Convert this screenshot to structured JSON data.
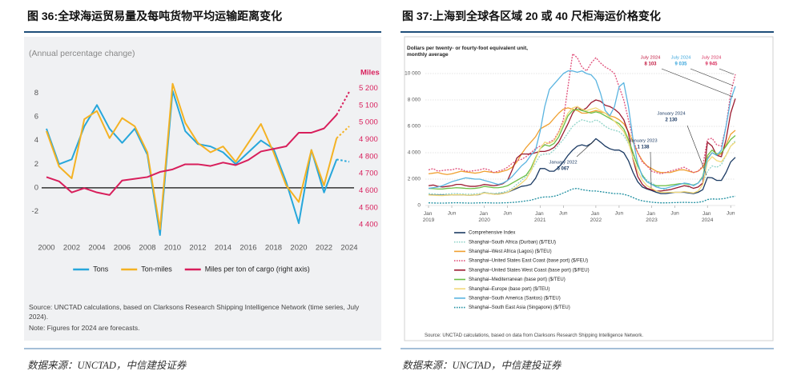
{
  "chart_data": [
    {
      "type": "line",
      "title": "图 36:全球海运贸易量及每吨货物平均运输距离变化",
      "subtitle": "(Annual percentage change)",
      "x": [
        2000,
        2001,
        2002,
        2003,
        2004,
        2005,
        2006,
        2007,
        2008,
        2009,
        2010,
        2011,
        2012,
        2013,
        2014,
        2015,
        2016,
        2017,
        2018,
        2019,
        2020,
        2021,
        2022,
        2023,
        2024
      ],
      "xlim": [
        2000,
        2024
      ],
      "xticks": [
        2000,
        2002,
        2004,
        2006,
        2008,
        2010,
        2012,
        2014,
        2016,
        2018,
        2020,
        2022,
        2024
      ],
      "ylim": [
        -4,
        10
      ],
      "yticks": [
        -2,
        0,
        2,
        4,
        6,
        8
      ],
      "y2label": "Miles",
      "y2lim": [
        4340,
        5310
      ],
      "y2ticks": [
        {
          "value": 4400,
          "label": "4 400"
        },
        {
          "value": 4500,
          "label": "4 500"
        },
        {
          "value": 4600,
          "label": "4 600"
        },
        {
          "value": 4700,
          "label": "4 700"
        },
        {
          "value": 4800,
          "label": "4 800"
        },
        {
          "value": 4900,
          "label": "4 900"
        },
        {
          "value": 5000,
          "label": "5 000"
        },
        {
          "value": 5100,
          "label": "5 100"
        },
        {
          "value": 5200,
          "label": "5 200"
        }
      ],
      "zero_line": true,
      "forecast_x": 2024,
      "legend": "bottom",
      "series": [
        {
          "name": "Tons",
          "color": "#27a7db",
          "values": [
            5.0,
            2.0,
            2.4,
            5.2,
            7.0,
            5.0,
            3.8,
            5.0,
            2.8,
            -4.0,
            8.2,
            4.8,
            3.7,
            3.5,
            3.0,
            2.0,
            3.0,
            4.0,
            3.3,
            0.5,
            -3.0,
            3.2,
            -0.4,
            2.4,
            2.2
          ]
        },
        {
          "name": "Ton-miles",
          "color": "#f4b223",
          "values": [
            4.8,
            1.8,
            0.8,
            5.8,
            6.5,
            4.2,
            5.9,
            5.2,
            3.0,
            -3.5,
            8.8,
            5.5,
            3.8,
            3.0,
            3.5,
            2.2,
            3.8,
            5.4,
            3.0,
            0.2,
            -1.2,
            3.2,
            0.2,
            4.2,
            5.2
          ]
        },
        {
          "name": "Miles per ton of cargo (right axis)",
          "color": "#d81e5b",
          "axis": "y2",
          "values": [
            4680,
            4655,
            4590,
            4615,
            4590,
            4575,
            4660,
            4670,
            4680,
            4710,
            4725,
            4755,
            4755,
            4745,
            4765,
            4750,
            4780,
            4830,
            4845,
            4860,
            4940,
            4940,
            4965,
            5045,
            5180
          ]
        }
      ],
      "source": "Source: UNCTAD calculations, based on Clarksons Research Shipping Intelligence Network (time series, July 2024).",
      "note": "Note: Figures for 2024 are forecasts.",
      "footer": "数据来源：UNCTAD，中信建投证券"
    },
    {
      "type": "line",
      "title": "图 37:上海到全球各区域 20 或 40 尺柜海运价格变化",
      "y_label": "Dollars per twenty- or fourty-foot equivalent unit, monthly average",
      "categories": [
        "Jan 2019",
        null,
        null,
        null,
        null,
        "Jun",
        null,
        null,
        null,
        null,
        null,
        null,
        "Jan 2020",
        null,
        null,
        null,
        null,
        "Jun",
        null,
        null,
        null,
        null,
        null,
        null,
        "Jan 2021",
        null,
        null,
        null,
        null,
        "Jun",
        null,
        null,
        null,
        null,
        null,
        null,
        "Jan 2022",
        null,
        null,
        null,
        null,
        "Jun",
        null,
        null,
        null,
        null,
        null,
        null,
        "Jan 2023",
        null,
        null,
        null,
        null,
        "Jun",
        null,
        null,
        null,
        null,
        null,
        null,
        "Jan 2024",
        null,
        null,
        null,
        null,
        "Jun",
        null
      ],
      "ylim": [
        0,
        12000
      ],
      "yticks": [
        0,
        {
          "value": 2000,
          "label": "2 000"
        },
        {
          "value": 4000,
          "label": "4 000"
        },
        {
          "value": 6000,
          "label": "6 000"
        },
        {
          "value": 8000,
          "label": "8 000"
        },
        {
          "value": 10000,
          "label": "10 000"
        }
      ],
      "grid": true,
      "legend": "bottom-left",
      "series": [
        {
          "name": "Comprehensive Index",
          "color": "#1b3a63",
          "values": [
            820,
            800,
            790,
            780,
            790,
            800,
            820,
            810,
            790,
            780,
            800,
            830,
            980,
            900,
            880,
            860,
            920,
            1000,
            1150,
            1300,
            1450,
            1500,
            1600,
            2050,
            2800,
            2800,
            2600,
            2600,
            2900,
            3300,
            3800,
            4200,
            4500,
            4600,
            4500,
            4700,
            5067,
            4800,
            4500,
            4300,
            4200,
            4200,
            4000,
            3400,
            2500,
            1800,
            1400,
            1250,
            1138,
            1000,
            900,
            900,
            950,
            1000,
            1000,
            1000,
            950,
            900,
            1000,
            1200,
            2130,
            2100,
            1900,
            1900,
            2500,
            3300,
            3650
          ]
        },
        {
          "name": "Shanghai–South Africa (Durban) ($/TEU)",
          "color": "#8fd3c8",
          "dash": true,
          "values": [
            900,
            880,
            850,
            850,
            870,
            900,
            900,
            880,
            860,
            850,
            880,
            900,
            1000,
            950,
            900,
            950,
            1000,
            1100,
            1300,
            1600,
            1900,
            2200,
            2600,
            3200,
            3800,
            3900,
            3900,
            4200,
            4600,
            5000,
            5500,
            6000,
            6300,
            6500,
            6400,
            6300,
            6500,
            6300,
            6000,
            5800,
            5700,
            5600,
            5300,
            4700,
            3800,
            3000,
            2300,
            1900,
            1700,
            1500,
            1300,
            1200,
            1200,
            1300,
            1400,
            1500,
            1400,
            1300,
            1400,
            1700,
            2600,
            3000,
            2900,
            3100,
            3800,
            4500,
            4900
          ]
        },
        {
          "name": "Shanghai–West Africa (Lagos) ($/TEU)",
          "color": "#f0a030",
          "values": [
            2400,
            2450,
            2500,
            2400,
            2350,
            2400,
            2500,
            2600,
            2550,
            2500,
            2450,
            2500,
            2600,
            2550,
            2500,
            2500,
            2600,
            2700,
            2900,
            3300,
            3900,
            4400,
            4800,
            5200,
            5800,
            6000,
            6200,
            6600,
            7000,
            7300,
            7400,
            7300,
            7200,
            7000,
            7000,
            7100,
            7200,
            7100,
            7000,
            6800,
            6700,
            6500,
            6200,
            5600,
            4800,
            4000,
            3400,
            3000,
            2800,
            2600,
            2500,
            2500,
            2500,
            2600,
            2700,
            2700,
            2600,
            2500,
            2600,
            2900,
            3600,
            4000,
            3800,
            3900,
            4600,
            5400,
            5700
          ]
        },
        {
          "name": "Shanghai–United States East Coast (base port) ($/FEU)",
          "color": "#e0507a",
          "dash": true,
          "values": [
            2700,
            2800,
            2600,
            2650,
            2700,
            2700,
            2800,
            2750,
            2600,
            2600,
            2650,
            2700,
            2800,
            2700,
            2500,
            2600,
            2700,
            2900,
            3200,
            3400,
            3500,
            3700,
            4000,
            4300,
            4500,
            4600,
            4800,
            5000,
            5600,
            6500,
            9000,
            11500,
            11200,
            10500,
            10200,
            10800,
            11200,
            10800,
            10500,
            10300,
            10000,
            9000,
            8000,
            6500,
            5000,
            4000,
            3300,
            3000,
            2600,
            2500,
            2400,
            2500,
            2600,
            2700,
            2800,
            2900,
            2700,
            2500,
            2600,
            3000,
            5000,
            5100,
            4600,
            4500,
            6000,
            8500,
            9945
          ]
        },
        {
          "name": "Shanghai–United States West Coast (base port) ($/FEU)",
          "color": "#9b1b30",
          "values": [
            1500,
            1550,
            1450,
            1400,
            1450,
            1500,
            1600,
            1600,
            1500,
            1450,
            1450,
            1500,
            1600,
            1550,
            1500,
            1550,
            1650,
            1900,
            2700,
            3600,
            3900,
            3900,
            3900,
            4000,
            4100,
            4100,
            4200,
            4400,
            4800,
            5500,
            6200,
            7000,
            7500,
            7200,
            7400,
            7800,
            8000,
            7900,
            7600,
            7500,
            7300,
            7000,
            6500,
            5500,
            3500,
            2200,
            1600,
            1300,
            1200,
            1100,
            1100,
            1150,
            1200,
            1300,
            1400,
            1500,
            1450,
            1300,
            1400,
            1700,
            4800,
            4500,
            3800,
            3700,
            5000,
            7000,
            8103
          ]
        },
        {
          "name": "Shanghai–Mediterranean (base port) ($/TEU)",
          "color": "#6bbf45",
          "values": [
            1300,
            1280,
            1250,
            1250,
            1300,
            1320,
            1350,
            1330,
            1300,
            1280,
            1300,
            1350,
            1450,
            1400,
            1350,
            1350,
            1400,
            1500,
            1700,
            1900,
            2100,
            2300,
            2800,
            3600,
            4300,
            4600,
            4500,
            4700,
            5200,
            6000,
            6800,
            7200,
            7300,
            7200,
            7100,
            7000,
            7100,
            7000,
            6800,
            6600,
            6400,
            6200,
            5800,
            5000,
            4000,
            3000,
            2300,
            1800,
            1600,
            1500,
            1500,
            1500,
            1550,
            1600,
            1650,
            1650,
            1600,
            1550,
            1700,
            2200,
            3800,
            4200,
            3900,
            4000,
            4500,
            5000,
            5300
          ]
        },
        {
          "name": "Shanghai–Europe (base port) ($/TEU)",
          "color": "#f3d97a",
          "values": [
            800,
            780,
            760,
            750,
            780,
            800,
            820,
            810,
            790,
            780,
            800,
            850,
            950,
            900,
            850,
            850,
            900,
            1000,
            1200,
            1400,
            1700,
            2000,
            2600,
            3500,
            4300,
            4800,
            4700,
            4900,
            5500,
            6300,
            7000,
            7400,
            7500,
            7300,
            7200,
            7300,
            7400,
            7200,
            7000,
            6700,
            6400,
            6000,
            5600,
            4800,
            3600,
            2600,
            1900,
            1500,
            1300,
            1100,
            1000,
            1000,
            1000,
            1000,
            1000,
            1050,
            1000,
            950,
            1100,
            1600,
            3300,
            3700,
            3400,
            3300,
            3800,
            4500,
            4800
          ]
        },
        {
          "name": "Shanghai–South America (Santos) ($/TEU)",
          "color": "#5ab4e0",
          "values": [
            1300,
            1350,
            1400,
            1500,
            1650,
            1800,
            1900,
            2000,
            2100,
            2050,
            2000,
            2000,
            1900,
            1800,
            1700,
            1600,
            1700,
            1900,
            2200,
            2600,
            3000,
            3300,
            3800,
            4200,
            5600,
            7500,
            8800,
            9200,
            9600,
            10000,
            10200,
            10200,
            10100,
            10200,
            10000,
            9900,
            9500,
            8500,
            7200,
            6800,
            7500,
            9000,
            9300,
            7500,
            5000,
            3200,
            2200,
            1800,
            1600,
            1400,
            1300,
            1300,
            1400,
            1500,
            1600,
            1700,
            1650,
            1500,
            1700,
            2100,
            3500,
            4000,
            3800,
            4200,
            6000,
            8000,
            9035
          ]
        },
        {
          "name": "Shanghai–South East Asia (Singapore) ($/TEU)",
          "color": "#1f8fa0",
          "dash": true,
          "values": [
            200,
            190,
            180,
            180,
            190,
            200,
            210,
            200,
            190,
            180,
            190,
            200,
            210,
            200,
            190,
            190,
            200,
            210,
            230,
            260,
            300,
            350,
            400,
            500,
            600,
            650,
            650,
            700,
            800,
            950,
            1100,
            1250,
            1300,
            1200,
            1150,
            1100,
            1100,
            1050,
            1000,
            950,
            900,
            900,
            850,
            750,
            600,
            450,
            350,
            300,
            250,
            220,
            200,
            200,
            210,
            220,
            230,
            240,
            230,
            220,
            240,
            300,
            450,
            500,
            480,
            500,
            550,
            650,
            700
          ]
        }
      ],
      "annotations": [
        {
          "text": "July 2024",
          "value_label": "8 103",
          "color": "#c0143c"
        },
        {
          "text": "July 2024",
          "value_label": "9 035",
          "color": "#3aa6dc"
        },
        {
          "text": "July 2024",
          "value_label": "9 945",
          "color": "#d8305e"
        },
        {
          "text": "January 2024",
          "value_label": "2 130",
          "color": "#1b3a63"
        },
        {
          "text": "January 2023",
          "value_label": "1 138",
          "color": "#1b3a63"
        },
        {
          "text": "January 2022",
          "value_label": "5 067",
          "color": "#1b3a63"
        }
      ],
      "source": "Source: UNCTAD calculations, based on data from Clarksons Research Shipping Intelligence Network.",
      "footer": "数据来源：UNCTAD，中信建投证券"
    }
  ]
}
